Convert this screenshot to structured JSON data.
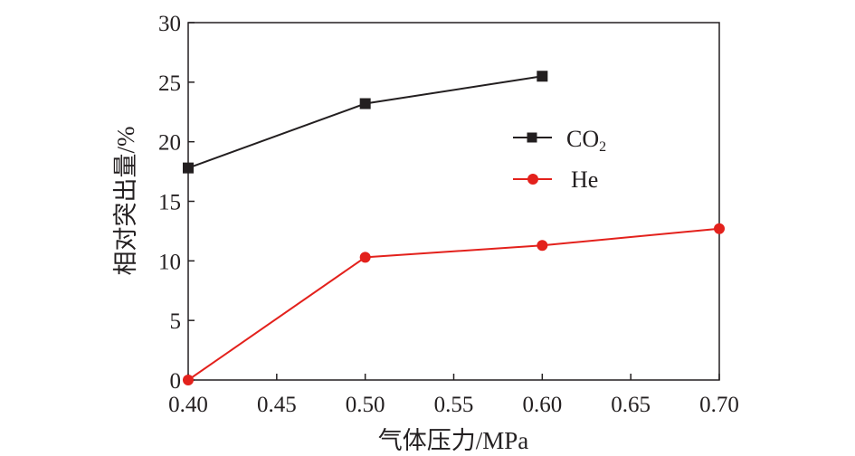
{
  "chart_data": {
    "type": "line",
    "xlabel": "气体压力/MPa",
    "ylabel": "相对突出量/%",
    "xlim": [
      0.4,
      0.7
    ],
    "ylim": [
      0,
      30
    ],
    "xticks": [
      "0.40",
      "0.45",
      "0.50",
      "0.55",
      "0.60",
      "0.65",
      "0.70"
    ],
    "yticks": [
      "0",
      "5",
      "10",
      "15",
      "20",
      "25",
      "30"
    ],
    "grid": false,
    "legend_position": "upper-right-inside",
    "series": [
      {
        "name": "CO2",
        "name_base": "CO",
        "name_subscript": "2",
        "marker": "square",
        "color": "#231f20",
        "x": [
          0.4,
          0.5,
          0.6
        ],
        "y": [
          17.8,
          23.2,
          25.5
        ]
      },
      {
        "name": "He",
        "marker": "circle",
        "color": "#e3211c",
        "x": [
          0.4,
          0.5,
          0.6,
          0.7
        ],
        "y": [
          0,
          10.3,
          11.3,
          12.7
        ]
      }
    ]
  }
}
